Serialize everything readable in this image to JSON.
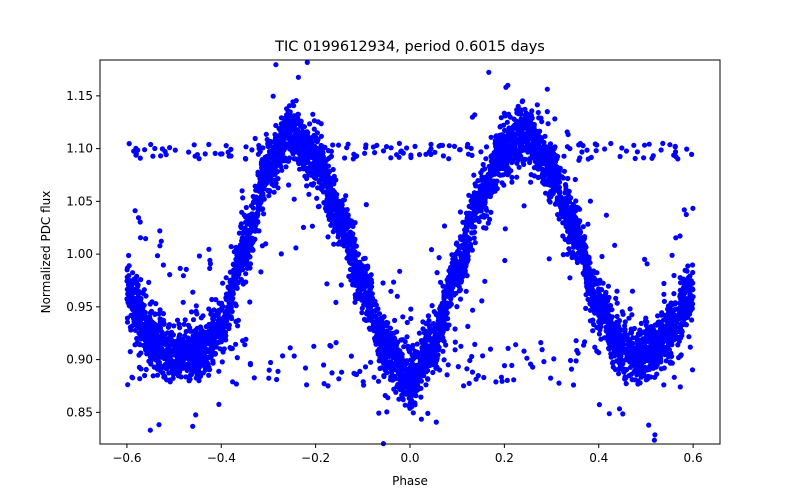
{
  "chart_data": {
    "type": "scatter",
    "title": "TIC 0199612934, period 0.6015 days",
    "xlabel": "Phase",
    "ylabel": "Normalized PDC flux",
    "xlim": [
      -0.657,
      0.657
    ],
    "ylim": [
      0.82,
      1.184
    ],
    "xticks": [
      -0.6,
      -0.4,
      -0.2,
      0.0,
      0.2,
      0.4,
      0.6
    ],
    "xtick_labels": [
      "−0.6",
      "−0.4",
      "−0.2",
      "0.0",
      "0.2",
      "0.4",
      "0.6"
    ],
    "yticks": [
      0.85,
      0.9,
      0.95,
      1.0,
      1.05,
      1.1,
      1.15
    ],
    "ytick_labels": [
      "0.85",
      "0.90",
      "0.95",
      "1.00",
      "1.05",
      "1.10",
      "1.15"
    ],
    "grid": false,
    "marker_color": "#0000ff",
    "phase_range": [
      -0.6,
      0.6
    ],
    "light_curve": {
      "phase": [
        -0.6,
        -0.55,
        -0.5,
        -0.45,
        -0.4,
        -0.35,
        -0.3,
        -0.25,
        -0.2,
        -0.15,
        -0.1,
        -0.05,
        0.0,
        0.05,
        0.1,
        0.15,
        0.2,
        0.25,
        0.3,
        0.35,
        0.4,
        0.45,
        0.5,
        0.55,
        0.6
      ],
      "flux": [
        0.965,
        0.92,
        0.905,
        0.908,
        0.93,
        1.01,
        1.08,
        1.115,
        1.09,
        1.035,
        0.97,
        0.91,
        0.88,
        0.915,
        0.985,
        1.055,
        1.1,
        1.115,
        1.08,
        1.02,
        0.95,
        0.912,
        0.905,
        0.925,
        0.965
      ]
    },
    "outlier_bands": [
      {
        "y_range": [
          1.09,
          1.105
        ],
        "note": "upper band"
      },
      {
        "y_range": [
          0.875,
          0.92
        ],
        "note": "lower band"
      }
    ]
  }
}
